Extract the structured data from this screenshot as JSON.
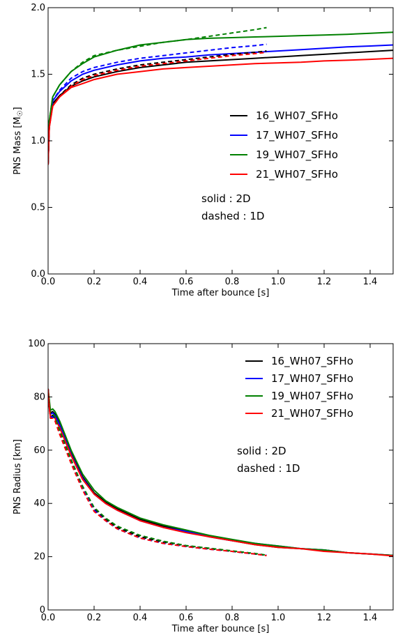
{
  "chart_data": [
    {
      "type": "line",
      "xlabel": "Time after bounce [s]",
      "ylabel": "PNS Mass [M",
      "ylabel_symbol": "☉",
      "ylabel_end": "]",
      "xlim": [
        0.0,
        1.5
      ],
      "ylim": [
        0.0,
        2.0
      ],
      "xticks": [
        "0.0",
        "0.2",
        "0.4",
        "0.6",
        "0.8",
        "1.0",
        "1.2",
        "1.4"
      ],
      "yticks": [
        "0.0",
        "0.5",
        "1.0",
        "1.5",
        "2.0"
      ],
      "legend": [
        "16_WH07_SFHo",
        "17_WH07_SFHo",
        "19_WH07_SFHo",
        "21_WH07_SFHo"
      ],
      "legend_placement": "center-right",
      "annotations": [
        "solid : 2D",
        "dashed : 1D"
      ],
      "series": [
        {
          "name": "16_WH07_SFHo",
          "style": "solid",
          "color": "#000000",
          "x": [
            0.0,
            0.005,
            0.02,
            0.05,
            0.1,
            0.15,
            0.2,
            0.3,
            0.4,
            0.5,
            0.6,
            0.7,
            0.8,
            0.9,
            1.0,
            1.1,
            1.2,
            1.3,
            1.4,
            1.5
          ],
          "y": [
            0.82,
            1.1,
            1.28,
            1.34,
            1.41,
            1.45,
            1.48,
            1.52,
            1.55,
            1.57,
            1.59,
            1.6,
            1.61,
            1.62,
            1.63,
            1.64,
            1.65,
            1.66,
            1.67,
            1.68
          ]
        },
        {
          "name": "17_WH07_SFHo",
          "style": "solid",
          "color": "#0000ff",
          "x": [
            0.0,
            0.005,
            0.02,
            0.05,
            0.1,
            0.15,
            0.2,
            0.3,
            0.4,
            0.5,
            0.6,
            0.7,
            0.8,
            0.9,
            1.0,
            1.1,
            1.2,
            1.3,
            1.4,
            1.5
          ],
          "y": [
            0.82,
            1.12,
            1.3,
            1.37,
            1.45,
            1.5,
            1.53,
            1.57,
            1.6,
            1.62,
            1.63,
            1.645,
            1.655,
            1.665,
            1.675,
            1.685,
            1.695,
            1.705,
            1.712,
            1.72
          ]
        },
        {
          "name": "19_WH07_SFHo",
          "style": "solid",
          "color": "#008000",
          "x": [
            0.0,
            0.005,
            0.02,
            0.05,
            0.1,
            0.15,
            0.2,
            0.3,
            0.4,
            0.5,
            0.6,
            0.7,
            0.8,
            0.9,
            1.0,
            1.1,
            1.2,
            1.3,
            1.4,
            1.5
          ],
          "y": [
            0.82,
            1.15,
            1.33,
            1.42,
            1.52,
            1.58,
            1.63,
            1.68,
            1.72,
            1.74,
            1.76,
            1.77,
            1.775,
            1.78,
            1.785,
            1.79,
            1.795,
            1.8,
            1.808,
            1.815
          ]
        },
        {
          "name": "21_WH07_SFHo",
          "style": "solid",
          "color": "#ff0000",
          "x": [
            0.0,
            0.005,
            0.02,
            0.05,
            0.1,
            0.15,
            0.2,
            0.3,
            0.4,
            0.5,
            0.6,
            0.7,
            0.8,
            0.9,
            1.0,
            1.1,
            1.2,
            1.3,
            1.4,
            1.5
          ],
          "y": [
            0.82,
            1.1,
            1.26,
            1.33,
            1.4,
            1.43,
            1.46,
            1.5,
            1.52,
            1.54,
            1.55,
            1.56,
            1.57,
            1.58,
            1.585,
            1.59,
            1.6,
            1.605,
            1.612,
            1.62
          ]
        },
        {
          "name": "16_WH07_SFHo",
          "style": "dashed",
          "color": "#000000",
          "x": [
            0.0,
            0.005,
            0.02,
            0.05,
            0.1,
            0.15,
            0.2,
            0.3,
            0.4,
            0.5,
            0.6,
            0.7,
            0.8,
            0.9,
            0.95
          ],
          "y": [
            0.82,
            1.1,
            1.28,
            1.34,
            1.42,
            1.47,
            1.5,
            1.54,
            1.57,
            1.59,
            1.61,
            1.63,
            1.65,
            1.665,
            1.675
          ]
        },
        {
          "name": "17_WH07_SFHo",
          "style": "dashed",
          "color": "#0000ff",
          "x": [
            0.0,
            0.005,
            0.02,
            0.05,
            0.1,
            0.15,
            0.2,
            0.3,
            0.4,
            0.5,
            0.6,
            0.7,
            0.8,
            0.9,
            0.95
          ],
          "y": [
            0.82,
            1.12,
            1.3,
            1.38,
            1.47,
            1.52,
            1.55,
            1.59,
            1.62,
            1.64,
            1.66,
            1.68,
            1.7,
            1.715,
            1.725
          ]
        },
        {
          "name": "19_WH07_SFHo",
          "style": "dashed",
          "color": "#008000",
          "x": [
            0.0,
            0.005,
            0.02,
            0.05,
            0.1,
            0.15,
            0.2,
            0.3,
            0.4,
            0.5,
            0.6,
            0.7,
            0.8,
            0.9,
            0.95
          ],
          "y": [
            0.82,
            1.15,
            1.33,
            1.42,
            1.52,
            1.59,
            1.64,
            1.68,
            1.71,
            1.74,
            1.76,
            1.785,
            1.81,
            1.835,
            1.85
          ]
        },
        {
          "name": "21_WH07_SFHo",
          "style": "dashed",
          "color": "#ff0000",
          "x": [
            0.0,
            0.005,
            0.02,
            0.05,
            0.1,
            0.15,
            0.2,
            0.3,
            0.4,
            0.5,
            0.6,
            0.7,
            0.8,
            0.9,
            0.95
          ],
          "y": [
            0.82,
            1.1,
            1.26,
            1.33,
            1.41,
            1.46,
            1.49,
            1.53,
            1.56,
            1.58,
            1.6,
            1.62,
            1.64,
            1.655,
            1.665
          ]
        }
      ]
    },
    {
      "type": "line",
      "xlabel": "Time after bounce [s]",
      "ylabel": "PNS Radius [km]",
      "xlim": [
        0.0,
        1.5
      ],
      "ylim": [
        0,
        100
      ],
      "xticks": [
        "0.0",
        "0.2",
        "0.4",
        "0.6",
        "0.8",
        "1.0",
        "1.2",
        "1.4"
      ],
      "yticks": [
        "0",
        "20",
        "40",
        "60",
        "80",
        "100"
      ],
      "legend": [
        "16_WH07_SFHo",
        "17_WH07_SFHo",
        "19_WH07_SFHo",
        "21_WH07_SFHo"
      ],
      "legend_placement": "top-right",
      "annotations": [
        "solid : 2D",
        "dashed : 1D"
      ],
      "series": [
        {
          "name": "16_WH07_SFHo",
          "style": "solid",
          "color": "#000000",
          "x": [
            0.0,
            0.005,
            0.01,
            0.02,
            0.03,
            0.05,
            0.1,
            0.15,
            0.2,
            0.25,
            0.3,
            0.4,
            0.5,
            0.6,
            0.7,
            0.8,
            0.9,
            1.0,
            1.1,
            1.2,
            1.3,
            1.4,
            1.5
          ],
          "y": [
            83,
            78,
            74,
            74.5,
            73.5,
            70,
            59,
            50,
            44,
            40.5,
            38,
            34,
            31.5,
            29.5,
            27.5,
            26,
            24.5,
            23.5,
            23,
            22.5,
            21.5,
            21,
            20.5
          ]
        },
        {
          "name": "17_WH07_SFHo",
          "style": "solid",
          "color": "#0000ff",
          "x": [
            0.0,
            0.005,
            0.01,
            0.02,
            0.03,
            0.05,
            0.1,
            0.15,
            0.2,
            0.25,
            0.3,
            0.4,
            0.5,
            0.6,
            0.7,
            0.8,
            0.9,
            1.0,
            1.1,
            1.2,
            1.3,
            1.4,
            1.5
          ],
          "y": [
            83,
            77,
            73.5,
            74,
            73,
            69.5,
            58.5,
            49.5,
            43.5,
            40,
            37.5,
            33.5,
            31,
            29.5,
            27.5,
            26,
            25,
            24,
            23,
            22.5,
            21.5,
            21,
            20.5
          ]
        },
        {
          "name": "19_WH07_SFHo",
          "style": "solid",
          "color": "#008000",
          "x": [
            0.0,
            0.005,
            0.01,
            0.02,
            0.03,
            0.05,
            0.1,
            0.15,
            0.2,
            0.25,
            0.3,
            0.4,
            0.5,
            0.6,
            0.7,
            0.8,
            0.9,
            1.0,
            1.1,
            1.2,
            1.3,
            1.4,
            1.5
          ],
          "y": [
            83,
            79,
            75,
            75.5,
            74.5,
            71,
            60,
            51,
            45,
            41,
            38.5,
            34.5,
            32,
            30,
            28,
            26.5,
            25,
            24,
            23,
            22.5,
            21.5,
            21,
            20.5
          ]
        },
        {
          "name": "21_WH07_SFHo",
          "style": "solid",
          "color": "#ff0000",
          "x": [
            0.0,
            0.005,
            0.01,
            0.02,
            0.03,
            0.05,
            0.1,
            0.15,
            0.2,
            0.25,
            0.3,
            0.4,
            0.5,
            0.6,
            0.7,
            0.8,
            0.9,
            1.0,
            1.1,
            1.2,
            1.3,
            1.4,
            1.5
          ],
          "y": [
            83,
            76,
            72.5,
            73,
            72,
            68.5,
            58,
            49,
            43.5,
            40,
            37.5,
            33.5,
            31,
            29,
            27.5,
            26,
            24.5,
            23.5,
            23,
            22,
            21.5,
            21,
            20.3
          ]
        },
        {
          "name": "16_WH07_SFHo",
          "style": "dashed",
          "color": "#000000",
          "x": [
            0.0,
            0.005,
            0.01,
            0.02,
            0.03,
            0.05,
            0.1,
            0.15,
            0.2,
            0.25,
            0.3,
            0.4,
            0.5,
            0.6,
            0.7,
            0.8,
            0.9,
            0.95
          ],
          "y": [
            83,
            77,
            73,
            73,
            72,
            67,
            56,
            46,
            38,
            34,
            31,
            27.5,
            25.5,
            24,
            23,
            22,
            21,
            20.5
          ]
        },
        {
          "name": "17_WH07_SFHo",
          "style": "dashed",
          "color": "#0000ff",
          "x": [
            0.0,
            0.005,
            0.01,
            0.02,
            0.03,
            0.05,
            0.1,
            0.15,
            0.2,
            0.25,
            0.3,
            0.4,
            0.5,
            0.6,
            0.7,
            0.8,
            0.9,
            0.95
          ],
          "y": [
            83,
            76.5,
            72.5,
            72.5,
            71.5,
            66.5,
            55.5,
            45.5,
            37.5,
            33.5,
            30.5,
            27,
            25,
            23.8,
            22.8,
            22,
            21,
            20.5
          ]
        },
        {
          "name": "19_WH07_SFHo",
          "style": "dashed",
          "color": "#008000",
          "x": [
            0.0,
            0.005,
            0.01,
            0.02,
            0.03,
            0.05,
            0.1,
            0.15,
            0.2,
            0.25,
            0.3,
            0.4,
            0.5,
            0.6,
            0.7,
            0.8,
            0.9,
            0.95
          ],
          "y": [
            83,
            77.5,
            73.5,
            73.5,
            72.5,
            67.5,
            56.5,
            46.5,
            38.5,
            34.5,
            31.5,
            28,
            25.8,
            24.2,
            23.2,
            22.2,
            21.2,
            20.6
          ]
        },
        {
          "name": "21_WH07_SFHo",
          "style": "dashed",
          "color": "#ff0000",
          "x": [
            0.0,
            0.005,
            0.01,
            0.02,
            0.03,
            0.05,
            0.1,
            0.15,
            0.2,
            0.25,
            0.3,
            0.4,
            0.5,
            0.6,
            0.7,
            0.8,
            0.9,
            0.95
          ],
          "y": [
            83,
            76,
            72,
            72,
            71,
            66,
            55,
            45,
            37,
            33.5,
            30.5,
            27,
            25,
            23.8,
            22.8,
            22,
            21,
            20.4
          ]
        }
      ]
    }
  ]
}
